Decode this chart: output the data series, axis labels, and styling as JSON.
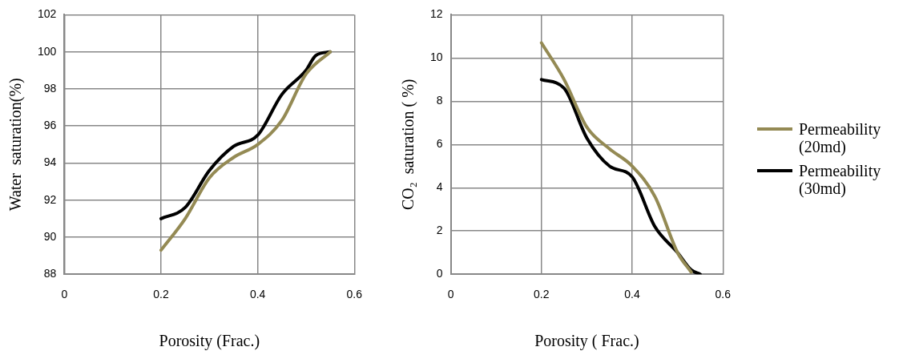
{
  "chart_data": [
    {
      "type": "line",
      "xlabel": "Porosity (Frac.)",
      "ylabel": "Water  saturation(%)",
      "xlim": [
        0,
        0.6
      ],
      "xticks": [
        0,
        0.2,
        0.4,
        0.6
      ],
      "ylim": [
        88,
        102
      ],
      "yticks": [
        88,
        90,
        92,
        94,
        96,
        98,
        100,
        102
      ],
      "grid": true,
      "legend": false,
      "marker": "none",
      "series": [
        {
          "color": "#948a54",
          "x": [
            0.2,
            0.25,
            0.3,
            0.35,
            0.4,
            0.45,
            0.5,
            0.55
          ],
          "values": [
            89.3,
            91,
            93.2,
            94.3,
            95,
            96.3,
            98.8,
            100
          ]
        },
        {
          "color": "#000000",
          "x": [
            0.2,
            0.25,
            0.3,
            0.35,
            0.4,
            0.45,
            0.5,
            0.52,
            0.55
          ],
          "values": [
            91,
            91.6,
            93.6,
            94.9,
            95.5,
            97.7,
            99,
            99.8,
            100
          ]
        }
      ]
    },
    {
      "type": "line",
      "xlabel": "Porosity ( Frac.)",
      "ylabel": "CO₂  saturation ( %)",
      "xlim": [
        0,
        0.6
      ],
      "xticks": [
        0,
        0.2,
        0.4,
        0.6
      ],
      "ylim": [
        0,
        12
      ],
      "yticks": [
        0,
        2,
        4,
        6,
        8,
        10,
        12
      ],
      "grid": true,
      "legend": "right",
      "marker": "none",
      "series": [
        {
          "name": "Permeability (20md)",
          "color": "#948a54",
          "x": [
            0.2,
            0.25,
            0.3,
            0.35,
            0.4,
            0.45,
            0.5,
            0.53
          ],
          "values": [
            10.7,
            9,
            6.8,
            5.8,
            5,
            3.6,
            1,
            0.1
          ]
        },
        {
          "name": "Permeability (30md)",
          "color": "#000000",
          "x": [
            0.2,
            0.25,
            0.3,
            0.35,
            0.4,
            0.45,
            0.5,
            0.53,
            0.55
          ],
          "values": [
            9,
            8.6,
            6.3,
            5,
            4.5,
            2.2,
            1,
            0.2,
            0
          ]
        }
      ]
    }
  ]
}
